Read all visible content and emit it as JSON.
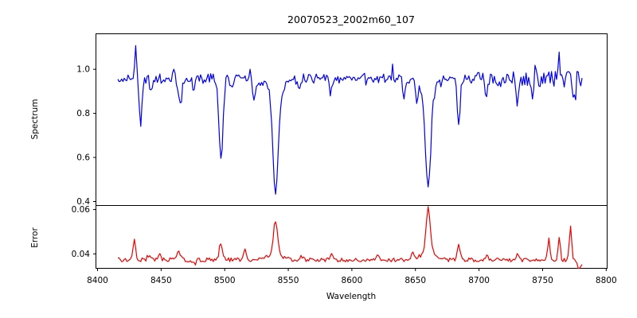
{
  "chart_data": {
    "type": "line",
    "title": "20070523_2002m60_107",
    "xlabel": "Wavelength",
    "xlim": [
      8398.75,
      8800.75
    ],
    "x_ticks": [
      8400,
      8450,
      8500,
      8550,
      8600,
      8650,
      8700,
      8750,
      8800
    ],
    "x_tick_labels": [
      "8400",
      "8450",
      "8500",
      "8550",
      "8600",
      "8650",
      "8700",
      "8750",
      "8800"
    ],
    "grid": false,
    "legend": "none",
    "panels": [
      {
        "name": "spectrum",
        "ylabel": "Spectrum",
        "ylim": [
          0.382,
          1.161
        ],
        "y_tick_values": [
          1.0,
          0.8,
          0.6,
          0.4
        ],
        "y_tick_labels": [
          "1.0",
          "0.8",
          "0.6",
          "0.4"
        ],
        "series": {
          "name": "spectrum-flux",
          "color": "#0000ee",
          "x_start": 8416,
          "x_end": 8781,
          "x_step": 1,
          "continuum": 0.958,
          "noise": {
            "base": 0.022,
            "red_start": 8690,
            "red_slope": 0.00026,
            "seed": 20070523
          },
          "absorption_lines": [
            {
              "center": 8434,
              "depth": 0.2,
              "sigma": 1.1
            },
            {
              "center": 8442,
              "depth": 0.05,
              "sigma": 0.9
            },
            {
              "center": 8465,
              "depth": 0.12,
              "sigma": 1.3
            },
            {
              "center": 8476,
              "depth": 0.05,
              "sigma": 1.0
            },
            {
              "center": 8497,
              "depth": 0.37,
              "sigma": 1.6
            },
            {
              "center": 8505,
              "depth": 0.05,
              "sigma": 0.9
            },
            {
              "center": 8523,
              "depth": 0.09,
              "sigma": 1.2
            },
            {
              "center": 8540,
              "depth": 0.46,
              "sigma": 2.0
            },
            {
              "center": 8540,
              "depth": 0.07,
              "sigma": 6.0
            },
            {
              "center": 8558,
              "depth": 0.05,
              "sigma": 0.9
            },
            {
              "center": 8583,
              "depth": 0.06,
              "sigma": 1.0
            },
            {
              "center": 8611,
              "depth": 0.05,
              "sigma": 0.9
            },
            {
              "center": 8641,
              "depth": 0.08,
              "sigma": 1.0
            },
            {
              "center": 8651,
              "depth": 0.1,
              "sigma": 1.0
            },
            {
              "center": 8660,
              "depth": 0.43,
              "sigma": 2.0
            },
            {
              "center": 8660,
              "depth": 0.07,
              "sigma": 6.0
            },
            {
              "center": 8684,
              "depth": 0.2,
              "sigma": 1.2
            },
            {
              "center": 8706,
              "depth": 0.08,
              "sigma": 1.0
            },
            {
              "center": 8717,
              "depth": 0.06,
              "sigma": 0.9
            },
            {
              "center": 8730,
              "depth": 0.1,
              "sigma": 1.0
            },
            {
              "center": 8742,
              "depth": 0.08,
              "sigma": 1.0
            },
            {
              "center": 8775,
              "depth": 0.09,
              "sigma": 1.0
            }
          ],
          "emission_spikes": [
            {
              "center": 8430,
              "height": 0.16,
              "sigma": 0.7
            },
            {
              "center": 8460,
              "height": 0.04,
              "sigma": 0.6
            },
            {
              "center": 8520,
              "height": 0.06,
              "sigma": 0.6
            },
            {
              "center": 8610,
              "height": 0.05,
              "sigma": 0.6
            },
            {
              "center": 8632,
              "height": 0.06,
              "sigma": 0.6
            },
            {
              "center": 8700,
              "height": 0.05,
              "sigma": 0.6
            },
            {
              "center": 8744,
              "height": 0.07,
              "sigma": 0.6
            },
            {
              "center": 8763,
              "height": 0.13,
              "sigma": 0.7
            }
          ]
        }
      },
      {
        "name": "error",
        "ylabel": "Error",
        "ylim": [
          0.0335,
          0.0618
        ],
        "y_tick_values": [
          0.06,
          0.04
        ],
        "y_tick_labels": [
          "0.06",
          "0.04"
        ],
        "series": {
          "name": "error-level",
          "color": "#ee0000",
          "x_start": 8416,
          "x_end": 8781,
          "x_step": 1,
          "baseline": 0.0373,
          "noise": {
            "base": 0.0009,
            "seed": 107
          },
          "peaks": [
            {
              "center": 8429,
              "height": 0.0085,
              "sigma": 1.0
            },
            {
              "center": 8440,
              "height": 0.002,
              "sigma": 1.0
            },
            {
              "center": 8449,
              "height": 0.003,
              "sigma": 1.0
            },
            {
              "center": 8464,
              "height": 0.004,
              "sigma": 1.2
            },
            {
              "center": 8476,
              "height": -0.002,
              "sigma": 1.2
            },
            {
              "center": 8497,
              "height": 0.0075,
              "sigma": 1.3
            },
            {
              "center": 8516,
              "height": 0.005,
              "sigma": 1.2
            },
            {
              "center": 8540,
              "height": 0.015,
              "sigma": 1.6
            },
            {
              "center": 8540,
              "height": 0.003,
              "sigma": 5.0
            },
            {
              "center": 8560,
              "height": 0.0015,
              "sigma": 1.5
            },
            {
              "center": 8584,
              "height": 0.0025,
              "sigma": 1.2
            },
            {
              "center": 8620,
              "height": 0.002,
              "sigma": 1.2
            },
            {
              "center": 8648,
              "height": 0.003,
              "sigma": 1.2
            },
            {
              "center": 8660,
              "height": 0.0195,
              "sigma": 1.6
            },
            {
              "center": 8660,
              "height": 0.004,
              "sigma": 5.0
            },
            {
              "center": 8684,
              "height": 0.0065,
              "sigma": 1.2
            },
            {
              "center": 8706,
              "height": 0.002,
              "sigma": 1.2
            },
            {
              "center": 8730,
              "height": 0.002,
              "sigma": 1.2
            },
            {
              "center": 8755,
              "height": 0.009,
              "sigma": 0.9
            },
            {
              "center": 8763,
              "height": 0.01,
              "sigma": 0.9
            },
            {
              "center": 8772,
              "height": 0.0145,
              "sigma": 0.9
            },
            {
              "center": 8779,
              "height": -0.004,
              "sigma": 1.5
            }
          ]
        }
      }
    ]
  }
}
